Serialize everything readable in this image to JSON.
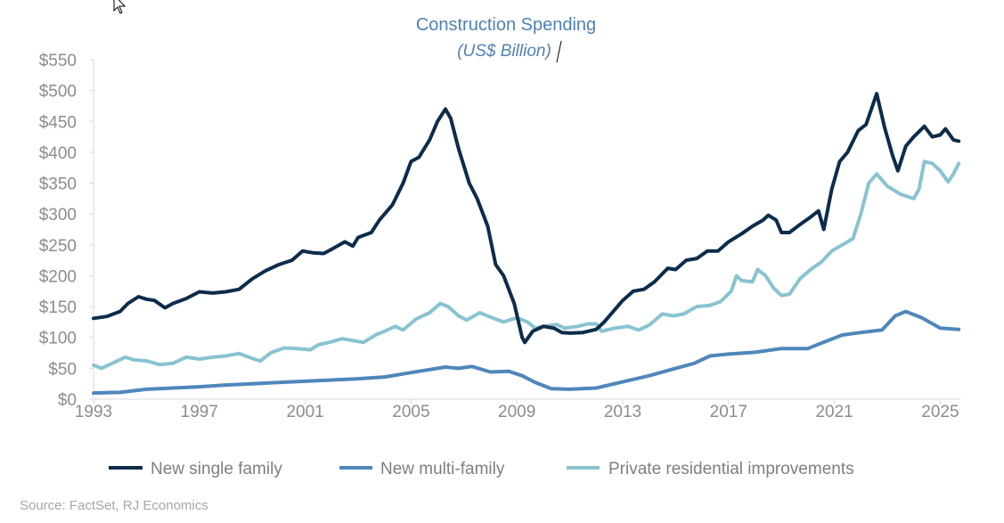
{
  "chart_data": {
    "type": "line",
    "title": "Construction Spending",
    "subtitle": "(US$ Billion)",
    "xlabel": "",
    "ylabel": "",
    "xlim": [
      1993,
      2025.8
    ],
    "ylim": [
      0,
      550
    ],
    "y_ticks": [
      "$0",
      "$50",
      "$100",
      "$150",
      "$200",
      "$250",
      "$300",
      "$350",
      "$400",
      "$450",
      "$500",
      "$550"
    ],
    "y_tick_values": [
      0,
      50,
      100,
      150,
      200,
      250,
      300,
      350,
      400,
      450,
      500,
      550
    ],
    "x_ticks": [
      "1993",
      "1997",
      "2001",
      "2005",
      "2009",
      "2013",
      "2017",
      "2021",
      "2025"
    ],
    "x_tick_values": [
      1993,
      1997,
      2001,
      2005,
      2009,
      2013,
      2017,
      2021,
      2025
    ],
    "grid": false,
    "legend_position": "bottom",
    "series": [
      {
        "name": "New single family",
        "color": "#0d2c4b",
        "x": [
          1993,
          1993.5,
          1994,
          1994.3,
          1994.7,
          1995,
          1995.3,
          1995.7,
          1996,
          1996.5,
          1997,
          1997.5,
          1998,
          1998.5,
          1999,
          1999.5,
          2000,
          2000.5,
          2000.9,
          2001.3,
          2001.7,
          2002,
          2002.5,
          2002.8,
          2003,
          2003.5,
          2003.8,
          2004.3,
          2004.7,
          2005,
          2005.3,
          2005.7,
          2006,
          2006.3,
          2006.5,
          2006.8,
          2007.2,
          2007.5,
          2007.9,
          2008.2,
          2008.5,
          2008.9,
          2009.2,
          2009.3,
          2009.6,
          2010,
          2010.4,
          2010.7,
          2011,
          2011.5,
          2012,
          2012.3,
          2012.7,
          2013,
          2013.4,
          2013.8,
          2014.2,
          2014.7,
          2015,
          2015.4,
          2015.8,
          2016.2,
          2016.6,
          2017,
          2017.5,
          2017.9,
          2018.3,
          2018.5,
          2018.8,
          2019,
          2019.3,
          2019.7,
          2020.1,
          2020.4,
          2020.6,
          2020.9,
          2021.2,
          2021.5,
          2021.9,
          2022.2,
          2022.6,
          2022.9,
          2023.2,
          2023.4,
          2023.7,
          2024,
          2024.4,
          2024.7,
          2025,
          2025.2,
          2025.5,
          2025.7
        ],
        "values": [
          131,
          134,
          142,
          155,
          166,
          162,
          160,
          148,
          155,
          163,
          174,
          172,
          174,
          178,
          195,
          208,
          218,
          225,
          240,
          237,
          236,
          243,
          255,
          248,
          262,
          270,
          290,
          315,
          350,
          385,
          392,
          420,
          450,
          470,
          455,
          405,
          350,
          325,
          280,
          218,
          200,
          155,
          100,
          92,
          110,
          118,
          115,
          108,
          107,
          108,
          113,
          125,
          145,
          160,
          175,
          178,
          190,
          212,
          210,
          225,
          228,
          240,
          240,
          255,
          268,
          280,
          290,
          298,
          290,
          270,
          270,
          283,
          295,
          305,
          275,
          340,
          385,
          400,
          435,
          445,
          495,
          440,
          395,
          370,
          410,
          425,
          442,
          425,
          428,
          438,
          420,
          418
        ]
      },
      {
        "name": "New multi-family",
        "color": "#4f87bb",
        "x": [
          1993,
          1994,
          1995,
          1996,
          1997,
          1998,
          1999,
          2000,
          2001,
          2002,
          2003,
          2004,
          2005,
          2006.3,
          2006.8,
          2007.3,
          2008,
          2008.7,
          2009.2,
          2009.7,
          2010.3,
          2011,
          2012,
          2013,
          2014,
          2015,
          2015.7,
          2016.3,
          2017,
          2018,
          2019,
          2020,
          2020.7,
          2021.3,
          2022,
          2022.8,
          2023.3,
          2023.7,
          2024.3,
          2025,
          2025.7
        ],
        "values": [
          10,
          11,
          16,
          18,
          20,
          23,
          25,
          27,
          29,
          31,
          33,
          36,
          43,
          52,
          50,
          53,
          44,
          45,
          38,
          27,
          17,
          16,
          18,
          28,
          38,
          50,
          58,
          70,
          73,
          76,
          82,
          82,
          94,
          104,
          108,
          112,
          135,
          142,
          132,
          115,
          113
        ]
      },
      {
        "name": "Private residential improvements",
        "color": "#89c3d0",
        "x": [
          1993,
          1993.3,
          1993.7,
          1994.2,
          1994.5,
          1995,
          1995.5,
          1996,
          1996.5,
          1997,
          1997.5,
          1998,
          1998.5,
          1999,
          1999.3,
          1999.7,
          2000.2,
          2000.7,
          2001.2,
          2001.5,
          2002,
          2002.4,
          2002.8,
          2003.2,
          2003.7,
          2004,
          2004.4,
          2004.7,
          2005.2,
          2005.7,
          2006.1,
          2006.4,
          2006.8,
          2007.1,
          2007.6,
          2008,
          2008.5,
          2009,
          2009.4,
          2009.7,
          2010,
          2010.5,
          2010.8,
          2011.3,
          2011.7,
          2012,
          2012.2,
          2012.7,
          2013.2,
          2013.6,
          2014,
          2014.5,
          2014.9,
          2015.3,
          2015.8,
          2016.3,
          2016.7,
          2017.1,
          2017.3,
          2017.5,
          2017.9,
          2018.1,
          2018.4,
          2018.7,
          2019,
          2019.3,
          2019.7,
          2020.1,
          2020.5,
          2020.9,
          2021.3,
          2021.7,
          2022,
          2022.3,
          2022.6,
          2023,
          2023.5,
          2024,
          2024.2,
          2024.4,
          2024.7,
          2025,
          2025.3,
          2025.5,
          2025.7
        ],
        "values": [
          55,
          50,
          58,
          68,
          64,
          62,
          56,
          58,
          68,
          65,
          68,
          70,
          74,
          66,
          62,
          75,
          83,
          82,
          80,
          88,
          93,
          98,
          95,
          92,
          105,
          110,
          118,
          112,
          130,
          140,
          155,
          150,
          135,
          128,
          140,
          133,
          125,
          132,
          125,
          115,
          118,
          121,
          115,
          118,
          122,
          122,
          110,
          115,
          118,
          112,
          120,
          138,
          135,
          138,
          150,
          152,
          158,
          175,
          200,
          192,
          190,
          210,
          200,
          180,
          168,
          170,
          195,
          210,
          222,
          240,
          250,
          260,
          300,
          350,
          365,
          345,
          332,
          325,
          340,
          385,
          382,
          370,
          352,
          365,
          382
        ]
      }
    ]
  },
  "legend": [
    "New single family",
    "New multi-family",
    "Private residential improvements"
  ],
  "source": "Source: FactSet, RJ Economics",
  "colors": {
    "axis": "#d9d9d9",
    "tick_text": "#8c8c8c",
    "title": "#4f81b5"
  },
  "icons": {
    "cursor": "mouse-pointer-icon",
    "text_caret": "text-caret-icon"
  }
}
